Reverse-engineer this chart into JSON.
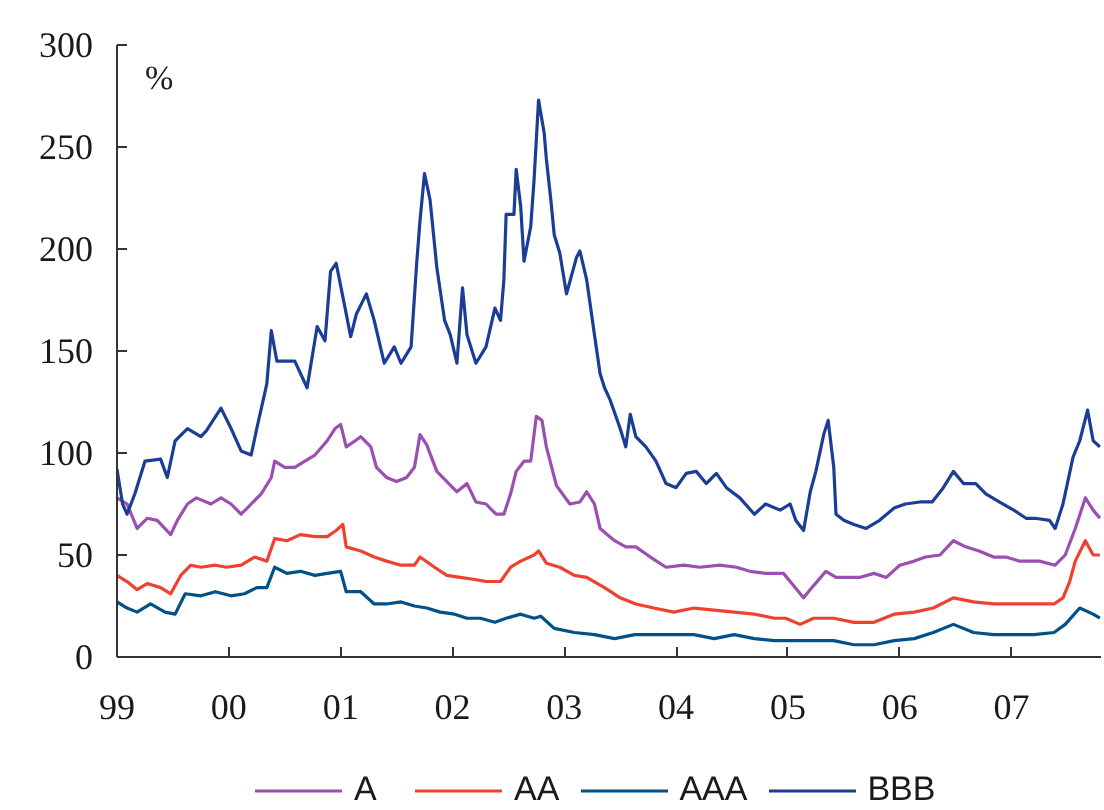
{
  "chart_data": {
    "type": "line",
    "ylabel": "%",
    "xlim": [
      1999,
      2007.8
    ],
    "ylim": [
      0,
      300
    ],
    "xticks": [
      {
        "value": 1999,
        "label": "99"
      },
      {
        "value": 2000,
        "label": "00"
      },
      {
        "value": 2001,
        "label": "01"
      },
      {
        "value": 2002,
        "label": "02"
      },
      {
        "value": 2003,
        "label": "03"
      },
      {
        "value": 2004,
        "label": "04"
      },
      {
        "value": 2005,
        "label": "05"
      },
      {
        "value": 2006,
        "label": "06"
      },
      {
        "value": 2007,
        "label": "07"
      }
    ],
    "yticks": [
      0,
      50,
      100,
      150,
      200,
      250,
      300
    ],
    "legend": "bottom",
    "line_style": "solid",
    "series": [
      {
        "name": "A",
        "color": "#9b4fb0",
        "x": [
          1999.0,
          1999.09,
          1999.18,
          1999.27,
          1999.36,
          1999.48,
          1999.54,
          1999.63,
          1999.71,
          1999.84,
          1999.93,
          2000.02,
          2000.11,
          2000.2,
          2000.29,
          2000.38,
          2000.41,
          2000.5,
          2000.59,
          2000.68,
          2000.77,
          2000.88,
          2000.95,
          2001.0,
          2001.05,
          2001.13,
          2001.18,
          2001.27,
          2001.32,
          2001.41,
          2001.5,
          2001.59,
          2001.66,
          2001.71,
          2001.77,
          2001.86,
          2001.95,
          2002.04,
          2002.13,
          2002.21,
          2002.3,
          2002.39,
          2002.46,
          2002.52,
          2002.57,
          2002.64,
          2002.7,
          2002.75,
          2002.8,
          2002.84,
          2002.93,
          2003.05,
          2003.14,
          2003.2,
          2003.27,
          2003.32,
          2003.45,
          2003.55,
          2003.64,
          2003.77,
          2003.91,
          2004.07,
          2004.21,
          2004.39,
          2004.54,
          2004.66,
          2004.8,
          2004.96,
          2005.05,
          2005.14,
          2005.23,
          2005.34,
          2005.43,
          2005.52,
          2005.64,
          2005.77,
          2005.88,
          2006.0,
          2006.13,
          2006.23,
          2006.36,
          2006.48,
          2006.59,
          2006.71,
          2006.84,
          2006.95,
          2007.07,
          2007.25,
          2007.39,
          2007.48,
          2007.57,
          2007.66,
          2007.73,
          2007.79
        ],
        "values": [
          78,
          75,
          63,
          68,
          67,
          60,
          67,
          75,
          78,
          75,
          78,
          75,
          70,
          75,
          80,
          88,
          96,
          93,
          93,
          96,
          99,
          106,
          112,
          114,
          103,
          106,
          108,
          103,
          93,
          88,
          86,
          88,
          93,
          109,
          104,
          91,
          86,
          81,
          85,
          76,
          75,
          70,
          70,
          80,
          91,
          96,
          96,
          118,
          116,
          103,
          84,
          75,
          76,
          81,
          75,
          63,
          57,
          54,
          54,
          49,
          44,
          45,
          44,
          45,
          44,
          42,
          41,
          41,
          35,
          29,
          35,
          42,
          39,
          39,
          39,
          41,
          39,
          45,
          47,
          49,
          50,
          57,
          54,
          52,
          49,
          49,
          47,
          47,
          45,
          50,
          63,
          78,
          72,
          68
        ]
      },
      {
        "name": "AA",
        "color": "#f0412f",
        "x": [
          1999.0,
          1999.09,
          1999.18,
          1999.27,
          1999.39,
          1999.48,
          1999.57,
          1999.66,
          1999.75,
          1999.88,
          1999.98,
          2000.11,
          2000.23,
          2000.34,
          2000.41,
          2000.52,
          2000.64,
          2000.77,
          2000.88,
          2000.96,
          2001.02,
          2001.05,
          2001.18,
          2001.3,
          2001.41,
          2001.54,
          2001.66,
          2001.71,
          2001.84,
          2001.95,
          2002.07,
          2002.2,
          2002.3,
          2002.43,
          2002.52,
          2002.61,
          2002.73,
          2002.77,
          2002.84,
          2002.96,
          2003.09,
          2003.2,
          2003.36,
          2003.5,
          2003.64,
          2003.8,
          2003.98,
          2004.16,
          2004.34,
          2004.52,
          2004.7,
          2004.88,
          2004.98,
          2005.11,
          2005.23,
          2005.41,
          2005.59,
          2005.77,
          2005.95,
          2006.13,
          2006.3,
          2006.48,
          2006.66,
          2006.84,
          2007.02,
          2007.2,
          2007.38,
          2007.46,
          2007.52,
          2007.57,
          2007.66,
          2007.73,
          2007.79
        ],
        "values": [
          40,
          37,
          33,
          36,
          34,
          31,
          40,
          45,
          44,
          45,
          44,
          45,
          49,
          47,
          58,
          57,
          60,
          59,
          59,
          62,
          65,
          54,
          52,
          49,
          47,
          45,
          45,
          49,
          44,
          40,
          39,
          38,
          37,
          37,
          44,
          47,
          50,
          52,
          46,
          44,
          40,
          39,
          34,
          29,
          26,
          24,
          22,
          24,
          23,
          22,
          21,
          19,
          19,
          16,
          19,
          19,
          17,
          17,
          21,
          22,
          24,
          29,
          27,
          26,
          26,
          26,
          26,
          29,
          37,
          47,
          57,
          50,
          50
        ]
      },
      {
        "name": "AAA",
        "color": "#00508a",
        "x": [
          1999.0,
          1999.09,
          1999.18,
          1999.3,
          1999.43,
          1999.52,
          1999.61,
          1999.75,
          1999.88,
          2000.02,
          2000.14,
          2000.25,
          2000.34,
          2000.41,
          2000.52,
          2000.64,
          2000.77,
          2000.88,
          2001.0,
          2001.05,
          2001.18,
          2001.3,
          2001.41,
          2001.54,
          2001.66,
          2001.77,
          2001.89,
          2002.02,
          2002.13,
          2002.25,
          2002.38,
          2002.48,
          2002.61,
          2002.73,
          2002.79,
          2002.91,
          2003.09,
          2003.27,
          2003.45,
          2003.63,
          2003.8,
          2003.98,
          2004.16,
          2004.34,
          2004.52,
          2004.7,
          2004.88,
          2005.05,
          2005.23,
          2005.41,
          2005.59,
          2005.77,
          2005.95,
          2006.13,
          2006.3,
          2006.48,
          2006.66,
          2006.84,
          2007.02,
          2007.2,
          2007.38,
          2007.48,
          2007.61,
          2007.73,
          2007.79
        ],
        "values": [
          27,
          24,
          22,
          26,
          22,
          21,
          31,
          30,
          32,
          30,
          31,
          34,
          34,
          44,
          41,
          42,
          40,
          41,
          42,
          32,
          32,
          26,
          26,
          27,
          25,
          24,
          22,
          21,
          19,
          19,
          17,
          19,
          21,
          19,
          20,
          14,
          12,
          11,
          9,
          11,
          11,
          11,
          11,
          9,
          11,
          9,
          8,
          8,
          8,
          8,
          6,
          6,
          8,
          9,
          12,
          16,
          12,
          11,
          11,
          11,
          12,
          16,
          24,
          21,
          19
        ]
      },
      {
        "name": "BBB",
        "color": "#1c3d96",
        "x": [
          1999.0,
          1999.05,
          1999.09,
          1999.16,
          1999.25,
          1999.39,
          1999.45,
          1999.52,
          1999.63,
          1999.75,
          1999.8,
          1999.93,
          2000.02,
          2000.11,
          2000.2,
          2000.25,
          2000.32,
          2000.34,
          2000.38,
          2000.43,
          2000.59,
          2000.7,
          2000.79,
          2000.86,
          2000.91,
          2000.96,
          2001.04,
          2001.09,
          2001.14,
          2001.23,
          2001.3,
          2001.39,
          2001.48,
          2001.54,
          2001.63,
          2001.68,
          2001.71,
          2001.75,
          2001.8,
          2001.86,
          2001.93,
          2001.98,
          2002.04,
          2002.09,
          2002.13,
          2002.21,
          2002.3,
          2002.38,
          2002.43,
          2002.46,
          2002.48,
          2002.55,
          2002.57,
          2002.61,
          2002.64,
          2002.7,
          2002.73,
          2002.77,
          2002.82,
          2002.84,
          2002.88,
          2002.91,
          2002.96,
          2003.02,
          2003.11,
          2003.14,
          2003.2,
          2003.27,
          2003.32,
          2003.36,
          2003.41,
          2003.5,
          2003.55,
          2003.59,
          2003.64,
          2003.73,
          2003.82,
          2003.91,
          2004.0,
          2004.09,
          2004.18,
          2004.27,
          2004.36,
          2004.45,
          2004.57,
          2004.7,
          2004.8,
          2004.93,
          2005.02,
          2005.07,
          2005.14,
          2005.2,
          2005.25,
          2005.32,
          2005.36,
          2005.41,
          2005.43,
          2005.5,
          2005.59,
          2005.7,
          2005.82,
          2005.95,
          2006.05,
          2006.18,
          2006.29,
          2006.39,
          2006.48,
          2006.57,
          2006.68,
          2006.77,
          2006.89,
          2007.02,
          2007.13,
          2007.21,
          2007.34,
          2007.39,
          2007.46,
          2007.55,
          2007.61,
          2007.68,
          2007.73,
          2007.79
        ],
        "values": [
          92,
          75,
          70,
          80,
          96,
          97,
          88,
          106,
          112,
          108,
          111,
          122,
          112,
          101,
          99,
          112,
          129,
          134,
          160,
          145,
          145,
          132,
          162,
          155,
          189,
          193,
          171,
          157,
          168,
          178,
          165,
          144,
          152,
          144,
          152,
          193,
          214,
          237,
          224,
          191,
          165,
          158,
          144,
          181,
          158,
          144,
          152,
          171,
          165,
          185,
          217,
          217,
          239,
          221,
          194,
          211,
          234,
          273,
          257,
          244,
          224,
          207,
          198,
          178,
          196,
          199,
          185,
          158,
          139,
          132,
          126,
          112,
          103,
          119,
          108,
          103,
          96,
          85,
          83,
          90,
          91,
          85,
          90,
          83,
          78,
          70,
          75,
          72,
          75,
          67,
          62,
          81,
          91,
          109,
          116,
          93,
          70,
          67,
          65,
          63,
          67,
          73,
          75,
          76,
          76,
          83,
          91,
          85,
          85,
          80,
          76,
          72,
          68,
          68,
          67,
          63,
          75,
          98,
          106,
          121,
          106,
          103
        ]
      }
    ]
  }
}
